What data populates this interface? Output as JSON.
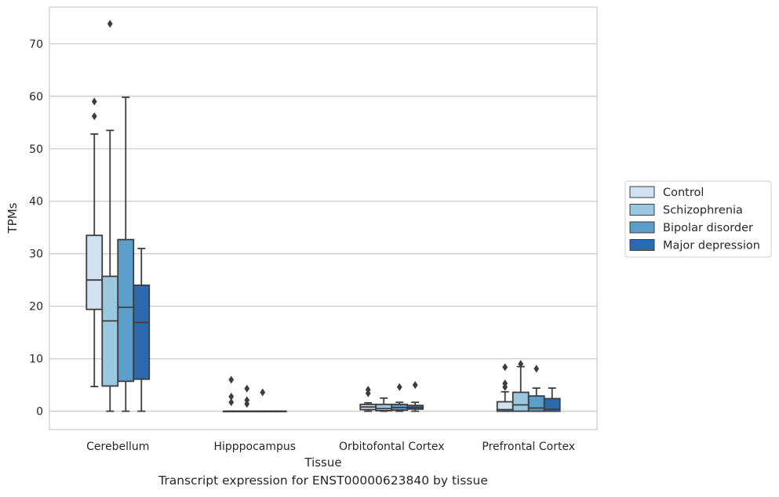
{
  "caption": "Transcript expression for ENST00000623840 by tissue",
  "chart_data": {
    "type": "box",
    "xlabel": "Tissue",
    "ylabel": "TPMs",
    "ylim": [
      -3.5,
      77
    ],
    "yticks": [
      0,
      10,
      20,
      30,
      40,
      50,
      60,
      70
    ],
    "grid": "horizontal",
    "legend_position": "right",
    "categories": [
      "Cerebellum",
      "Hipppocampus",
      "Orbitofontal Cortex",
      "Prefrontal Cortex"
    ],
    "series": [
      {
        "name": "Control",
        "color": "#d0e1f2",
        "boxes": [
          {
            "whislo": 4.7,
            "q1": 19.4,
            "med": 25.0,
            "q3": 33.5,
            "whishi": 52.8,
            "fliers": [
              56.2,
              59.0
            ]
          },
          {
            "whislo": 0,
            "q1": 0,
            "med": 0,
            "q3": 0,
            "whishi": 0,
            "fliers": [
              1.7,
              2.8,
              6.0
            ]
          },
          {
            "whislo": 0,
            "q1": 0.3,
            "med": 0.8,
            "q3": 1.3,
            "whishi": 1.6,
            "fliers": [
              3.4,
              4.1
            ]
          },
          {
            "whislo": 0,
            "q1": 0,
            "med": 0.3,
            "q3": 1.8,
            "whishi": 3.7,
            "fliers": [
              4.6,
              5.3,
              8.4
            ]
          }
        ]
      },
      {
        "name": "Schizophrenia",
        "color": "#9ac8e0",
        "boxes": [
          {
            "whislo": 0,
            "q1": 4.8,
            "med": 17.2,
            "q3": 25.7,
            "whishi": 53.5,
            "fliers": [
              73.8
            ]
          },
          {
            "whislo": 0,
            "q1": 0,
            "med": 0,
            "q3": 0,
            "whishi": 0,
            "fliers": [
              1.4,
              2.1,
              4.3
            ]
          },
          {
            "whislo": 0,
            "q1": 0.1,
            "med": 0.5,
            "q3": 1.3,
            "whishi": 2.5,
            "fliers": []
          },
          {
            "whislo": 0,
            "q1": 0,
            "med": 1.2,
            "q3": 3.6,
            "whishi": 8.5,
            "fliers": [
              9.0
            ]
          }
        ]
      },
      {
        "name": "Bipolar disorder",
        "color": "#5a9ec9",
        "boxes": [
          {
            "whislo": 0,
            "q1": 5.7,
            "med": 19.8,
            "q3": 32.7,
            "whishi": 59.8,
            "fliers": []
          },
          {
            "whislo": 0,
            "q1": 0,
            "med": 0,
            "q3": 0,
            "whishi": 0,
            "fliers": [
              3.6
            ]
          },
          {
            "whislo": 0,
            "q1": 0.2,
            "med": 0.7,
            "q3": 1.3,
            "whishi": 1.7,
            "fliers": [
              4.6
            ]
          },
          {
            "whislo": 0,
            "q1": 0,
            "med": 0.6,
            "q3": 2.9,
            "whishi": 4.4,
            "fliers": [
              8.1
            ]
          }
        ]
      },
      {
        "name": "Major depression",
        "color": "#2a6aad",
        "boxes": [
          {
            "whislo": 0,
            "q1": 6.1,
            "med": 16.9,
            "q3": 24.0,
            "whishi": 31.0,
            "fliers": []
          },
          {
            "whislo": 0,
            "q1": 0,
            "med": 0,
            "q3": 0,
            "whishi": 0,
            "fliers": []
          },
          {
            "whislo": 0,
            "q1": 0.4,
            "med": 0.7,
            "q3": 1.1,
            "whishi": 1.7,
            "fliers": [
              5.0
            ]
          },
          {
            "whislo": 0,
            "q1": 0,
            "med": 0.4,
            "q3": 2.4,
            "whishi": 4.4,
            "fliers": []
          }
        ]
      }
    ]
  }
}
